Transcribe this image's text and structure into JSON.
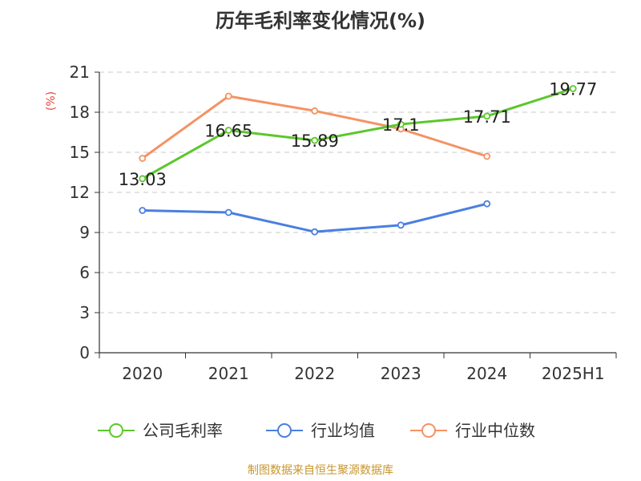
{
  "chart_data": {
    "type": "line",
    "title": "历年毛利率变化情况(%)",
    "ylabel": "(%)",
    "xlabel": "",
    "categories": [
      "2020",
      "2021",
      "2022",
      "2023",
      "2024",
      "2025H1"
    ],
    "ylim": [
      0,
      21
    ],
    "yticks": [
      0,
      3,
      6,
      9,
      12,
      15,
      18,
      21
    ],
    "grid": true,
    "legend_position": "bottom",
    "series": [
      {
        "name": "公司毛利率",
        "color": "#5cc72c",
        "values": [
          13.03,
          16.65,
          15.89,
          17.1,
          17.71,
          19.77
        ],
        "show_labels": true
      },
      {
        "name": "行业均值",
        "color": "#4a7fe0",
        "values": [
          10.65,
          10.5,
          9.05,
          9.55,
          11.15,
          null
        ],
        "show_labels": false
      },
      {
        "name": "行业中位数",
        "color": "#f59263",
        "values": [
          14.55,
          19.2,
          18.1,
          16.75,
          14.7,
          null
        ],
        "show_labels": false
      }
    ],
    "source": "制图数据来自恒生聚源数据库"
  }
}
